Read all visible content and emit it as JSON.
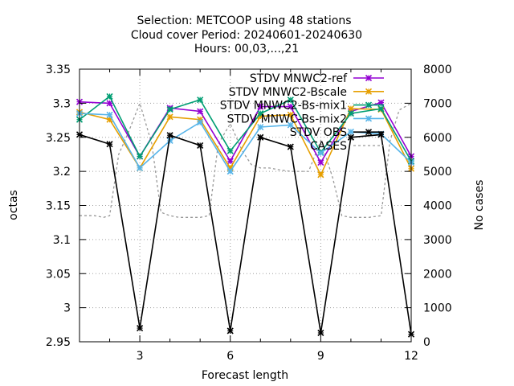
{
  "chart_data": {
    "type": "line",
    "title_lines": [
      "Selection: METCOOP using    48 stations",
      "Cloud cover   Period: 20240601-20240630",
      "Hours: 00,03,...,21"
    ],
    "xlabel": "Forecast length",
    "ylabel": "octas",
    "y2label": "No cases",
    "xlim": [
      1,
      12
    ],
    "ylim": [
      2.95,
      3.35
    ],
    "y2lim": [
      0,
      8000
    ],
    "x_ticks": [
      3,
      6,
      9,
      12
    ],
    "y_ticks": [
      "2.95",
      "3",
      "3.05",
      "3.1",
      "3.15",
      "3.2",
      "3.25",
      "3.3",
      "3.35"
    ],
    "y2_ticks": [
      "0",
      "1000",
      "2000",
      "3000",
      "4000",
      "5000",
      "6000",
      "7000",
      "8000"
    ],
    "grid": true,
    "legend_position": "top-right",
    "x": [
      1,
      2,
      3,
      4,
      5,
      6,
      7,
      8,
      9,
      10,
      11,
      12
    ],
    "series": [
      {
        "name": "STDV MNWC2-ref",
        "color": "#9400d3",
        "marker": "x",
        "axis": "y",
        "values": [
          3.302,
          3.3,
          3.222,
          3.293,
          3.288,
          3.215,
          3.295,
          3.295,
          3.213,
          3.288,
          3.301,
          3.222
        ]
      },
      {
        "name": "STDV MNWC2-Bscale",
        "color": "#e69f00",
        "marker": "x",
        "axis": "y",
        "values": [
          3.287,
          3.276,
          3.205,
          3.28,
          3.276,
          3.205,
          3.281,
          3.283,
          3.195,
          3.292,
          3.291,
          3.204
        ]
      },
      {
        "name": "STDV MNWC2-Bs-mix1",
        "color": "#009e73",
        "marker": "x",
        "axis": "y",
        "values": [
          3.276,
          3.31,
          3.222,
          3.291,
          3.305,
          3.23,
          3.285,
          3.305,
          3.228,
          3.285,
          3.292,
          3.215
        ]
      },
      {
        "name": "STDV MNWC-Bs-mix2",
        "color": "#56b4e9",
        "marker": "x",
        "axis": "y",
        "values": [
          3.285,
          3.283,
          3.205,
          3.245,
          3.272,
          3.2,
          3.265,
          3.268,
          3.227,
          3.258,
          3.255,
          3.213
        ]
      },
      {
        "name": "STDV OBS",
        "color": "#000000",
        "marker": "x",
        "axis": "y",
        "values": [
          3.254,
          3.24,
          2.97,
          3.253,
          3.238,
          2.966,
          3.25,
          3.236,
          2.963,
          3.25,
          3.254,
          2.961
        ]
      },
      {
        "name": "CASES",
        "color": "#999999",
        "marker": "none",
        "dashed": true,
        "axis": "y2",
        "x": [
          1,
          1.2,
          1.5,
          1.8,
          2,
          2.3,
          2.6,
          3,
          3.4,
          3.7,
          4,
          4.3,
          4.6,
          5,
          5.3,
          5.6,
          6,
          6.4,
          6.7,
          7,
          7.3,
          7.6,
          8,
          8.3,
          8.6,
          9,
          9.4,
          9.7,
          10,
          10.3,
          10.6,
          11,
          11.3,
          11.6,
          12
        ],
        "values": [
          3700,
          3700,
          3700,
          3650,
          3700,
          5500,
          6100,
          7000,
          5800,
          3800,
          3700,
          3650,
          3650,
          3650,
          3700,
          5800,
          6400,
          5600,
          5200,
          5100,
          5100,
          5050,
          5000,
          5000,
          5000,
          5900,
          4800,
          3700,
          3650,
          3650,
          3650,
          3700,
          5900,
          6800,
          7000
        ]
      }
    ]
  }
}
